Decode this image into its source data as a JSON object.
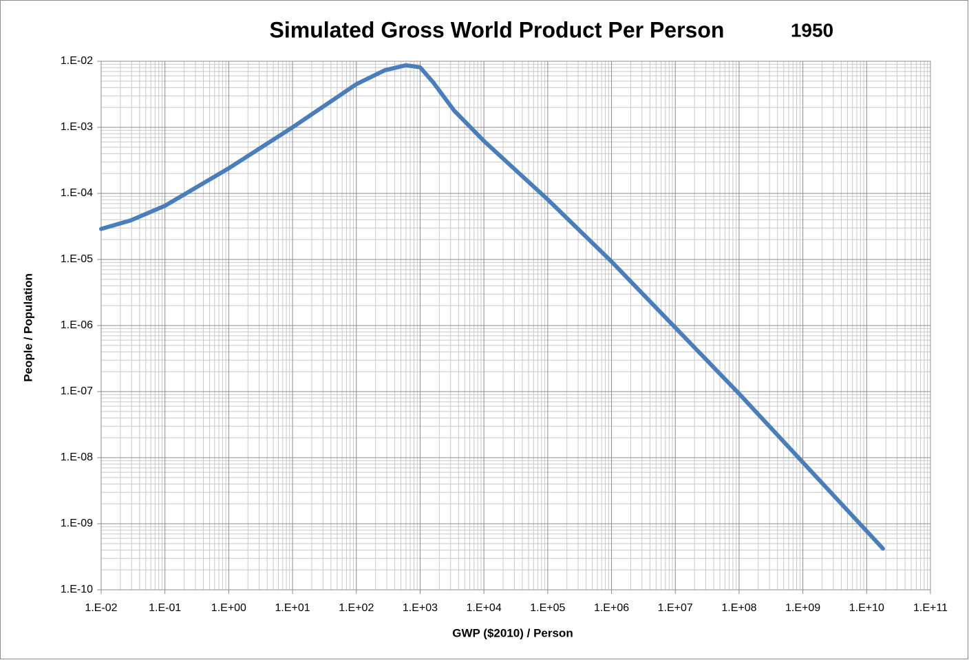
{
  "chart_data": {
    "type": "line",
    "title": "Simulated Gross World Product Per Person",
    "subtitle": "1950",
    "x_label": "GWP ($2010) / Person",
    "y_label": "People / Population",
    "x": [
      0.01,
      0.029,
      0.1,
      1,
      10,
      100,
      280,
      600,
      1000,
      1600,
      3400,
      10000,
      100000,
      1000000,
      10000000,
      100000000,
      1000000000,
      18000000000
    ],
    "values": [
      2.9e-05,
      3.9e-05,
      6.5e-05,
      0.00024,
      0.001,
      0.0045,
      0.0073,
      0.0087,
      0.0081,
      0.0048,
      0.0018,
      0.00062,
      8.1e-05,
      9.3e-06,
      9.3e-07,
      9.3e-08,
      8.5e-09,
      4.2e-10
    ],
    "color": "#4a7ebb",
    "x_log": true,
    "y_log": true,
    "grid": true,
    "minor_grid": true,
    "xlim": [
      0.01,
      100000000000
    ],
    "ylim": [
      1e-10,
      0.01
    ],
    "xticks": [
      {
        "value": 0.01,
        "label": "1.E-02"
      },
      {
        "value": 0.1,
        "label": "1.E-01"
      },
      {
        "value": 1,
        "label": "1.E+00"
      },
      {
        "value": 10,
        "label": "1.E+01"
      },
      {
        "value": 100,
        "label": "1.E+02"
      },
      {
        "value": 1000,
        "label": "1.E+03"
      },
      {
        "value": 10000,
        "label": "1.E+04"
      },
      {
        "value": 100000,
        "label": "1.E+05"
      },
      {
        "value": 1000000,
        "label": "1.E+06"
      },
      {
        "value": 10000000,
        "label": "1.E+07"
      },
      {
        "value": 100000000,
        "label": "1.E+08"
      },
      {
        "value": 1000000000,
        "label": "1.E+09"
      },
      {
        "value": 10000000000,
        "label": "1.E+10"
      },
      {
        "value": 100000000000,
        "label": "1.E+11"
      }
    ],
    "yticks": [
      {
        "value": 1e-10,
        "label": "1.E-10"
      },
      {
        "value": 1e-09,
        "label": "1.E-09"
      },
      {
        "value": 1e-08,
        "label": "1.E-08"
      },
      {
        "value": 1e-07,
        "label": "1.E-07"
      },
      {
        "value": 1e-06,
        "label": "1.E-06"
      },
      {
        "value": 1e-05,
        "label": "1.E-05"
      },
      {
        "value": 0.0001,
        "label": "1.E-04"
      },
      {
        "value": 0.001,
        "label": "1.E-03"
      },
      {
        "value": 0.01,
        "label": "1.E-02"
      }
    ]
  }
}
